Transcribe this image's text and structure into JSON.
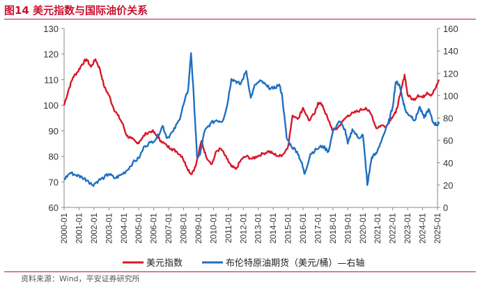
{
  "header": {
    "title": "图14  美元指数与国际油价关系"
  },
  "footer": {
    "source": "资料来源：Wind，平安证券研究所"
  },
  "chart_data": {
    "type": "line",
    "x_ticks": [
      "2000-01",
      "2001-01",
      "2002-01",
      "2003-01",
      "2004-01",
      "2005-01",
      "2006-01",
      "2007-01",
      "2008-01",
      "2009-01",
      "2010-01",
      "2011-01",
      "2012-01",
      "2013-01",
      "2014-01",
      "2015-01",
      "2016-01",
      "2017-01",
      "2018-01",
      "2019-01",
      "2020-01",
      "2021-01",
      "2022-01",
      "2023-01",
      "2024-01",
      "2025-01"
    ],
    "left_axis": {
      "ylim": [
        60,
        130
      ],
      "ticks": [
        "60",
        "70",
        "80",
        "90",
        "100",
        "110",
        "120",
        "130"
      ]
    },
    "right_axis": {
      "ylim": [
        0,
        160
      ],
      "ticks": [
        "0",
        "20",
        "40",
        "60",
        "80",
        "100",
        "120",
        "140",
        "160"
      ]
    },
    "series": [
      {
        "name": "美元指数",
        "axis": "left",
        "color": "#d7182a",
        "x": [
          2000.0,
          2000.3,
          2000.6,
          2000.9,
          2001.2,
          2001.5,
          2001.8,
          2002.1,
          2002.4,
          2002.7,
          2003.0,
          2003.3,
          2003.6,
          2003.9,
          2004.2,
          2004.5,
          2004.9,
          2005.2,
          2005.5,
          2005.9,
          2006.2,
          2006.5,
          2006.9,
          2007.2,
          2007.5,
          2007.9,
          2008.2,
          2008.5,
          2008.8,
          2009.2,
          2009.5,
          2009.9,
          2010.2,
          2010.5,
          2010.9,
          2011.2,
          2011.5,
          2011.9,
          2012.2,
          2012.6,
          2012.9,
          2013.3,
          2013.7,
          2014.0,
          2014.4,
          2014.7,
          2015.0,
          2015.3,
          2015.7,
          2016.0,
          2016.4,
          2016.8,
          2017.0,
          2017.3,
          2017.7,
          2018.0,
          2018.3,
          2018.7,
          2019.0,
          2019.4,
          2019.8,
          2020.2,
          2020.6,
          2020.9,
          2021.2,
          2021.6,
          2021.9,
          2022.2,
          2022.5,
          2022.8,
          2023.0,
          2023.4,
          2023.7,
          2024.0,
          2024.3,
          2024.6,
          2024.9,
          2025.1
        ],
        "y": [
          100,
          106,
          111,
          113,
          116,
          118,
          115,
          118,
          114,
          107,
          104,
          99,
          96,
          93,
          88,
          87,
          85,
          87,
          89,
          90,
          88,
          86,
          84,
          83,
          82,
          80,
          76,
          73,
          76,
          86,
          80,
          77,
          82,
          83,
          79,
          76,
          75,
          79,
          80,
          79,
          80,
          81,
          82,
          81,
          80,
          81,
          84,
          96,
          95,
          99,
          94,
          97,
          101,
          100,
          94,
          90,
          91,
          94,
          96,
          97,
          98,
          99,
          96,
          91,
          92,
          92,
          95,
          97,
          104,
          112,
          104,
          102,
          104,
          103,
          105,
          104,
          107,
          110
        ]
      },
      {
        "name": "布伦特原油期货（美元/桶）—右轴",
        "axis": "right",
        "color": "#1f6fc1",
        "x": [
          2000.0,
          2000.4,
          2000.8,
          2001.2,
          2001.6,
          2001.9,
          2002.3,
          2002.7,
          2003.0,
          2003.4,
          2003.8,
          2004.2,
          2004.6,
          2005.0,
          2005.4,
          2005.8,
          2006.2,
          2006.6,
          2006.9,
          2007.3,
          2007.7,
          2008.0,
          2008.3,
          2008.5,
          2008.7,
          2008.9,
          2009.1,
          2009.4,
          2009.8,
          2010.2,
          2010.6,
          2010.9,
          2011.2,
          2011.5,
          2011.8,
          2012.2,
          2012.5,
          2012.8,
          2013.2,
          2013.6,
          2014.0,
          2014.4,
          2014.6,
          2014.9,
          2015.2,
          2015.6,
          2015.9,
          2016.1,
          2016.5,
          2016.9,
          2017.3,
          2017.7,
          2018.0,
          2018.4,
          2018.8,
          2018.99,
          2019.3,
          2019.7,
          2020.0,
          2020.25,
          2020.3,
          2020.6,
          2020.9,
          2021.3,
          2021.7,
          2022.0,
          2022.2,
          2022.45,
          2022.7,
          2022.9,
          2023.2,
          2023.5,
          2023.8,
          2024.1,
          2024.4,
          2024.7,
          2024.95,
          2025.1
        ],
        "y": [
          25,
          31,
          29,
          27,
          24,
          20,
          24,
          27,
          30,
          26,
          29,
          33,
          40,
          44,
          55,
          58,
          62,
          73,
          62,
          68,
          78,
          92,
          105,
          138,
          95,
          45,
          47,
          68,
          75,
          78,
          77,
          90,
          115,
          113,
          110,
          122,
          98,
          110,
          113,
          108,
          106,
          110,
          100,
          62,
          55,
          50,
          40,
          30,
          48,
          52,
          55,
          50,
          68,
          77,
          70,
          57,
          70,
          62,
          65,
          30,
          20,
          45,
          48,
          62,
          75,
          90,
          112,
          110,
          95,
          85,
          82,
          78,
          90,
          80,
          88,
          76,
          74,
          75
        ]
      }
    ]
  }
}
